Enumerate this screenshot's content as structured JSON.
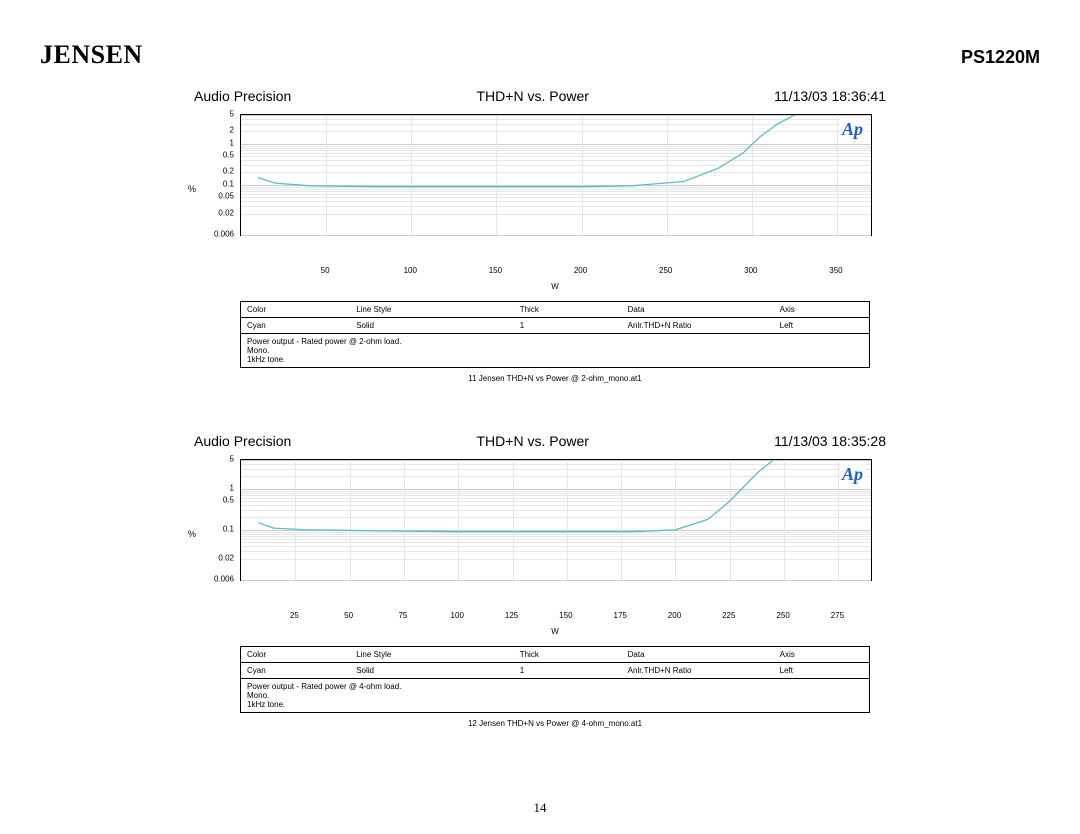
{
  "header": {
    "brand": "JENSEN",
    "model": "PS1220M"
  },
  "page_number": "14",
  "charts": [
    {
      "title_left": "Audio Precision",
      "title_center": "THD+N vs. Power",
      "title_right": "11/13/03 18:36:41",
      "y_label": "%",
      "x_label": "W",
      "y_ticks": [
        "5",
        "2",
        "1",
        "0.5",
        "0.2",
        "0.1",
        "0.05",
        "0.02",
        "0.006"
      ],
      "y_tick_log": [
        5,
        2,
        1,
        0.5,
        0.2,
        0.1,
        0.05,
        0.02,
        0.006
      ],
      "y_log_min": 0.006,
      "y_log_max": 5,
      "x_ticks": [
        "50",
        "100",
        "150",
        "200",
        "250",
        "300",
        "350"
      ],
      "x_min": 0,
      "x_max": 370,
      "line_color": "#5bbfc4",
      "ap_logo_color": "#1a5fd6",
      "data_points": [
        [
          10,
          0.15
        ],
        [
          20,
          0.11
        ],
        [
          40,
          0.095
        ],
        [
          80,
          0.09
        ],
        [
          120,
          0.09
        ],
        [
          160,
          0.09
        ],
        [
          200,
          0.09
        ],
        [
          230,
          0.095
        ],
        [
          260,
          0.12
        ],
        [
          280,
          0.25
        ],
        [
          295,
          0.6
        ],
        [
          305,
          1.5
        ],
        [
          315,
          3.0
        ],
        [
          325,
          5.0
        ]
      ],
      "legend_headers": [
        "Color",
        "Line Style",
        "Thick",
        "Data",
        "Axis"
      ],
      "legend_row": [
        "Cyan",
        "Solid",
        "1",
        "Anlr.THD+N Ratio",
        "Left"
      ],
      "notes": [
        "Power output - Rated power @ 2-ohm load.",
        "Mono.",
        "1kHz tone."
      ],
      "caption": "11 Jensen THD+N vs Power @ 2-ohm_mono.at1"
    },
    {
      "title_left": "Audio Precision",
      "title_center": "THD+N vs. Power",
      "title_right": "11/13/03 18:35:28",
      "y_label": "%",
      "x_label": "W",
      "y_ticks": [
        "5",
        "1",
        "0.5",
        "0.1",
        "0.02",
        "0.006"
      ],
      "y_tick_log": [
        5,
        1,
        0.5,
        0.1,
        0.02,
        0.006
      ],
      "y_log_min": 0.006,
      "y_log_max": 5,
      "x_ticks": [
        "25",
        "50",
        "75",
        "100",
        "125",
        "150",
        "175",
        "200",
        "225",
        "250",
        "275"
      ],
      "x_min": 0,
      "x_max": 290,
      "line_color": "#5bbfc4",
      "ap_logo_color": "#1a5fd6",
      "data_points": [
        [
          8,
          0.15
        ],
        [
          15,
          0.11
        ],
        [
          30,
          0.1
        ],
        [
          60,
          0.095
        ],
        [
          100,
          0.09
        ],
        [
          140,
          0.09
        ],
        [
          180,
          0.09
        ],
        [
          200,
          0.1
        ],
        [
          215,
          0.18
        ],
        [
          225,
          0.5
        ],
        [
          232,
          1.2
        ],
        [
          238,
          2.5
        ],
        [
          245,
          5.0
        ]
      ],
      "legend_headers": [
        "Color",
        "Line Style",
        "Thick",
        "Data",
        "Axis"
      ],
      "legend_row": [
        "Cyan",
        "Solid",
        "1",
        "Anlr.THD+N Ratio",
        "Left"
      ],
      "notes": [
        "Power output - Rated power @ 4-ohm load.",
        "Mono.",
        "1kHz tone."
      ],
      "caption": "12 Jensen THD+N vs Power @ 4-ohm_mono.at1"
    }
  ]
}
